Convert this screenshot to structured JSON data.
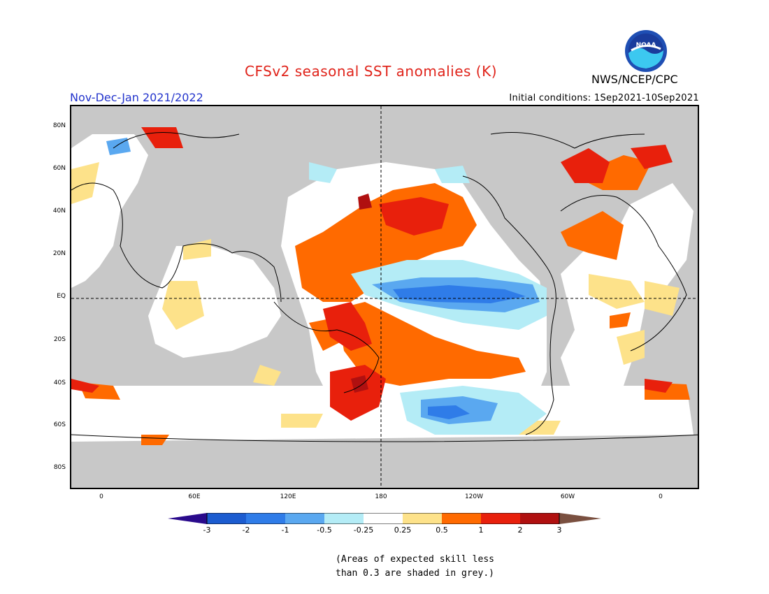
{
  "header": {
    "title": "CFSv2 seasonal SST anomalies (K)",
    "season": "Nov-Dec-Jan 2021/2022",
    "org": "NWS/NCEP/CPC",
    "initial_conditions": "Initial conditions: 1Sep2021-10Sep2021",
    "logo_text": "NOAA"
  },
  "colors": {
    "land": "#c8c8c8",
    "blue_extreme": "#2a0a8c",
    "blue3": "#1c5cd0",
    "blue2": "#2f7ce8",
    "blue1": "#5aa8f0",
    "blue05": "#b4ecf6",
    "white": "#ffffff",
    "yellow": "#fde28a",
    "orange": "#ff6a00",
    "red": "#e8200c",
    "darkred": "#b01010",
    "brown": "#7a5040"
  },
  "map": {
    "lat_labels": [
      "80N",
      "60N",
      "40N",
      "20N",
      "EQ",
      "20S",
      "40S",
      "60S",
      "80S"
    ],
    "lon_labels": [
      "0",
      "60E",
      "120E",
      "180",
      "120W",
      "60W",
      "0"
    ]
  },
  "colorbar": {
    "labels": [
      "-3",
      "-2",
      "-1",
      "-0.5",
      "-0.25",
      "0.25",
      "0.5",
      "1",
      "2",
      "3"
    ]
  },
  "note": [
    "(Areas of expected skill less",
    "than 0.3 are shaded in grey.)"
  ]
}
